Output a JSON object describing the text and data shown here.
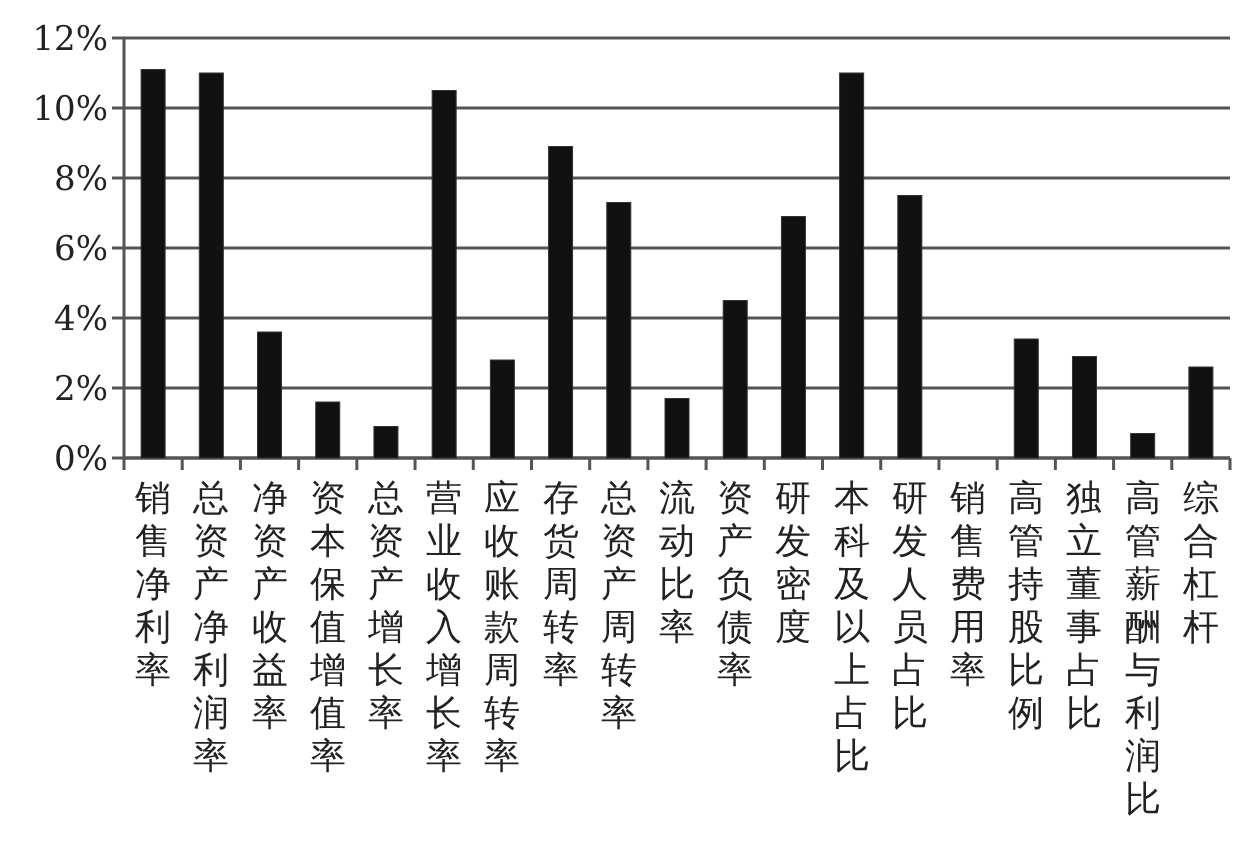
{
  "chart_data": {
    "type": "bar",
    "categories": [
      "销售净利率",
      "总资产净利润率",
      "净资产收益率",
      "资本保值增值率",
      "总资产增长率",
      "营业收入增长率",
      "应收账款周转率",
      "存货周转率",
      "总资产周转率",
      "流动比率",
      "资产负债率",
      "研发密度",
      "本科及以上占比",
      "研发人员占比",
      "销售费用率",
      "高管持股比例",
      "独立董事占比",
      "高管薪酬与利润比",
      "综合杠杆"
    ],
    "values": [
      11.1,
      11.0,
      3.6,
      1.6,
      0.9,
      10.5,
      2.8,
      8.9,
      7.3,
      1.7,
      4.5,
      6.9,
      11.0,
      7.5,
      0,
      3.4,
      2.9,
      0.7,
      2.6
    ],
    "color": "#111111",
    "ylim": [
      0,
      12
    ],
    "yticks": [
      {
        "value": 0,
        "label": "0%"
      },
      {
        "value": 2,
        "label": "2%"
      },
      {
        "value": 4,
        "label": "4%"
      },
      {
        "value": 6,
        "label": "6%"
      },
      {
        "value": 8,
        "label": "8%"
      },
      {
        "value": 10,
        "label": "10%"
      },
      {
        "value": 12,
        "label": "12%"
      }
    ],
    "grid": "y"
  }
}
